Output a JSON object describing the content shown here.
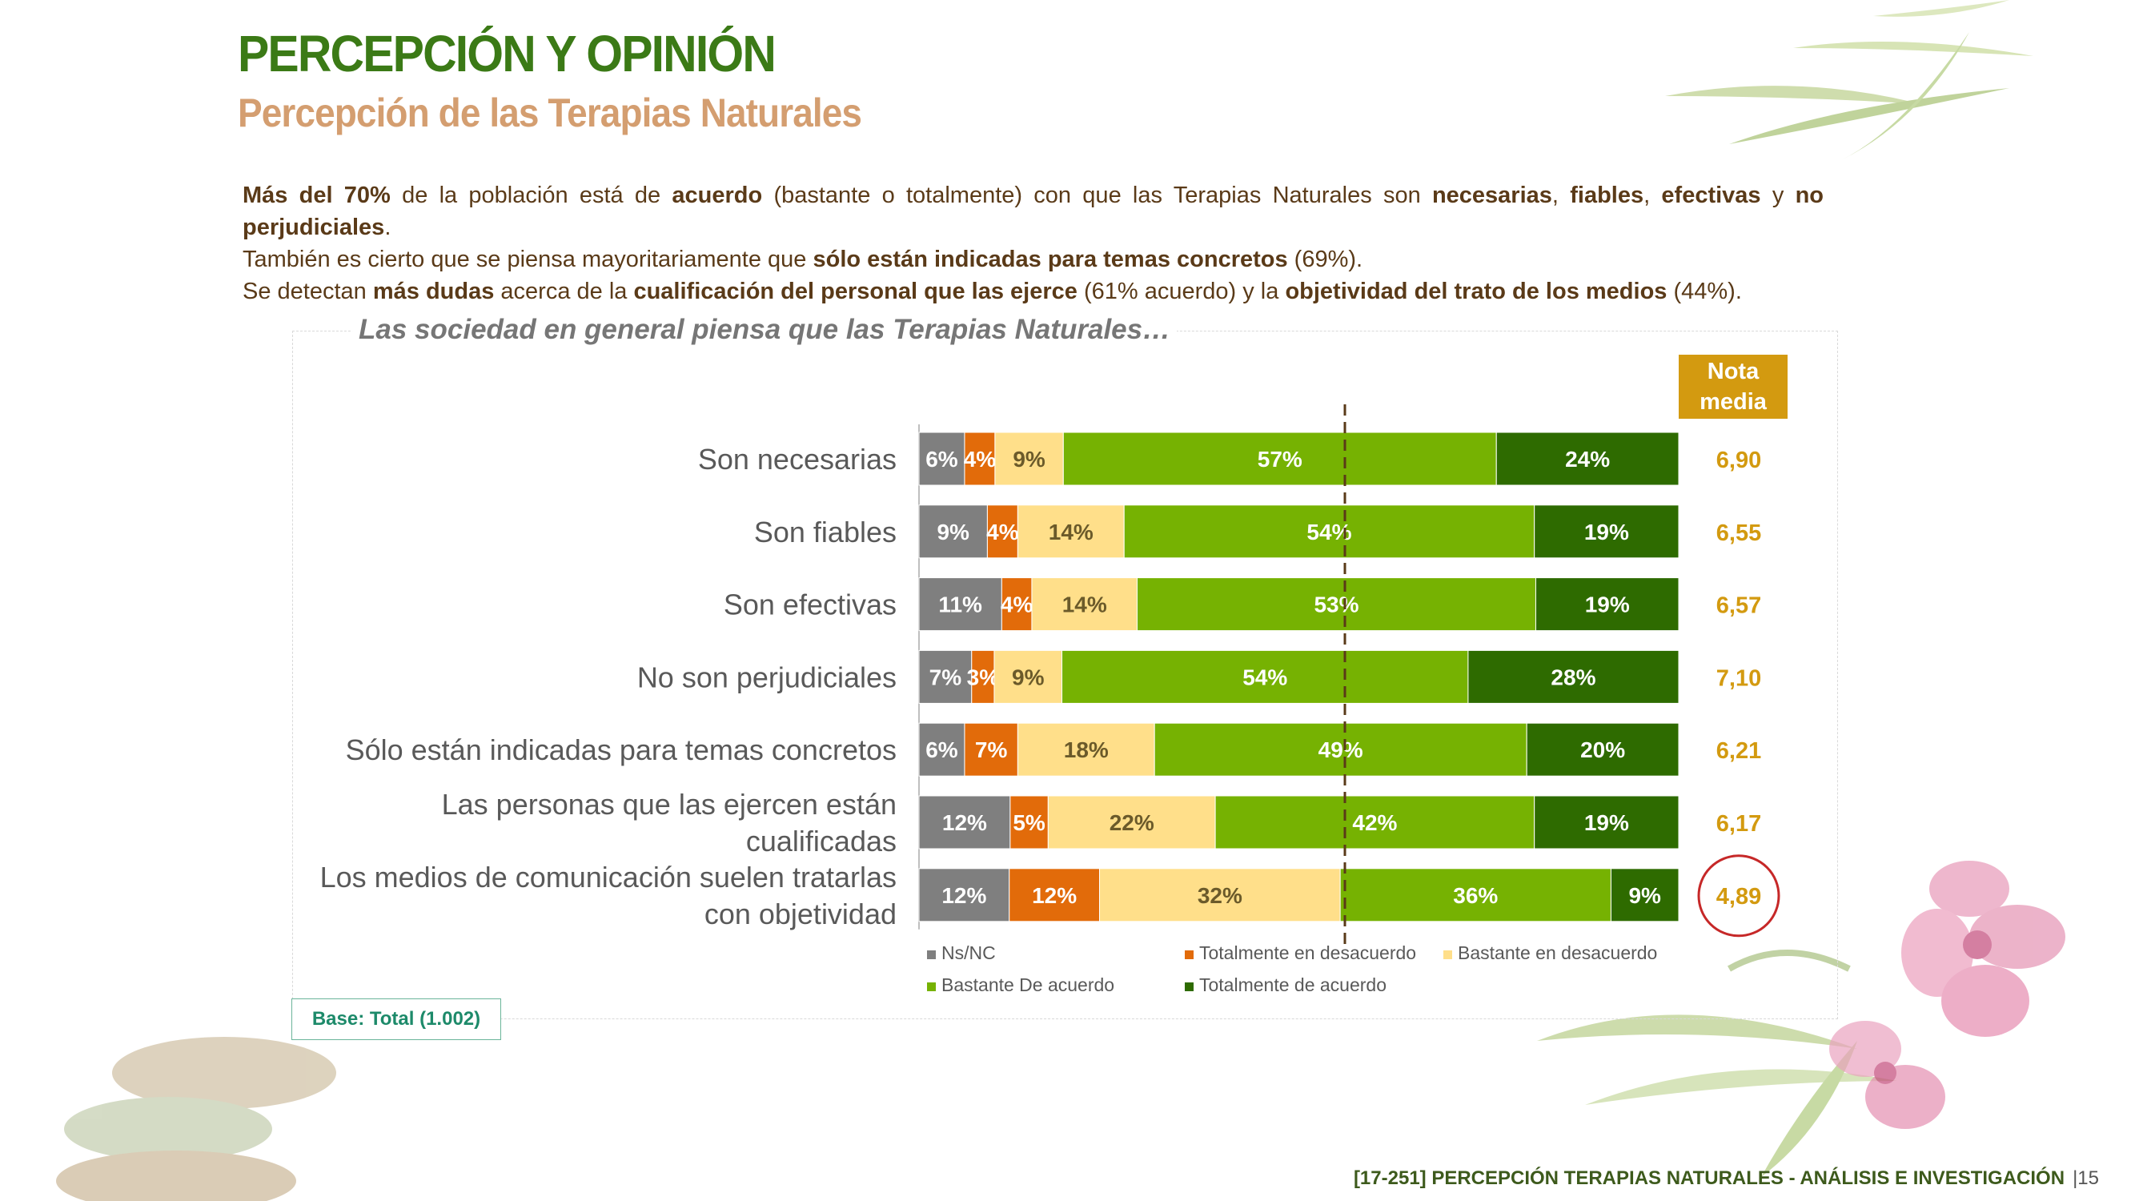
{
  "header": {
    "title": "PERCEPCIÓN Y OPINIÓN",
    "subtitle": "Percepción de las Terapias Naturales"
  },
  "intro": {
    "p1": [
      {
        "t": "Más del 70%",
        "b": true
      },
      {
        "t": " de la población está de ",
        "b": false
      },
      {
        "t": "acuerdo",
        "b": true
      },
      {
        "t": " (bastante o totalmente) con que las Terapias Naturales son ",
        "b": false
      },
      {
        "t": "necesarias",
        "b": true
      },
      {
        "t": ", ",
        "b": false
      },
      {
        "t": "fiables",
        "b": true
      },
      {
        "t": ", ",
        "b": false
      },
      {
        "t": "efectivas",
        "b": true
      },
      {
        "t": " y ",
        "b": false
      },
      {
        "t": "no perjudiciales",
        "b": true
      },
      {
        "t": ".",
        "b": false
      }
    ],
    "p2": [
      {
        "t": "También es cierto que se piensa mayoritariamente que ",
        "b": false
      },
      {
        "t": "sólo están indicadas para temas concretos",
        "b": true
      },
      {
        "t": " (69%).",
        "b": false
      }
    ],
    "p3": [
      {
        "t": "Se detectan ",
        "b": false
      },
      {
        "t": "más dudas",
        "b": true
      },
      {
        "t": " acerca de la ",
        "b": false
      },
      {
        "t": "cualificación del personal que las ejerce",
        "b": true
      },
      {
        "t": " (61% acuerdo) y la ",
        "b": false
      },
      {
        "t": "objetividad del trato de los medios",
        "b": true
      },
      {
        "t": " (44%).",
        "b": false
      }
    ]
  },
  "frame_title": "Las sociedad en general piensa que las Terapias Naturales…",
  "nota_media": {
    "line1": "Nota",
    "line2": "media",
    "values": [
      "6,90",
      "6,55",
      "6,57",
      "7,10",
      "6,21",
      "6,17",
      "4,89"
    ],
    "highlight_color": "#c62828",
    "color": "#d39a10"
  },
  "chart_data": {
    "type": "bar",
    "orientation": "horizontal",
    "stacked": true,
    "percent": true,
    "categories": [
      [
        "Son necesarias"
      ],
      [
        "Son fiables"
      ],
      [
        "Son efectivas"
      ],
      [
        "No son perjudiciales"
      ],
      [
        "Sólo están indicadas para temas concretos"
      ],
      [
        "Las personas que las ejercen están",
        "cualificadas"
      ],
      [
        "Los medios de comunicación suelen tratarlas",
        "con objetividad"
      ]
    ],
    "series": [
      {
        "name": "Ns/NC",
        "color": "#7f7f7f",
        "values": [
          6,
          9,
          11,
          7,
          6,
          12,
          12
        ]
      },
      {
        "name": "Totalmente en desacuerdo",
        "color": "#e26b0a",
        "values": [
          4,
          4,
          4,
          3,
          7,
          5,
          12
        ]
      },
      {
        "name": "Bastante en desacuerdo",
        "color": "#ffdf8a",
        "values": [
          9,
          14,
          14,
          9,
          18,
          22,
          32
        ]
      },
      {
        "name": "Bastante De acuerdo",
        "color": "#76b202",
        "values": [
          57,
          54,
          53,
          54,
          49,
          42,
          36
        ]
      },
      {
        "name": "Totalmente de acuerdo",
        "color": "#2e6b00",
        "values": [
          24,
          19,
          19,
          28,
          20,
          19,
          9
        ]
      }
    ],
    "reference_line": "dashed vertical divider between disagreement and agreement",
    "legend_position": "bottom"
  },
  "base_note": "Base: Total (1.002)",
  "footer": {
    "text": "[17-251] PERCEPCIÓN TERAPIAS NATURALES - ANÁLISIS E INVESTIGACIÓN",
    "page": "|15"
  },
  "decorations": [
    "bamboo-leaves",
    "stones",
    "orchid"
  ]
}
